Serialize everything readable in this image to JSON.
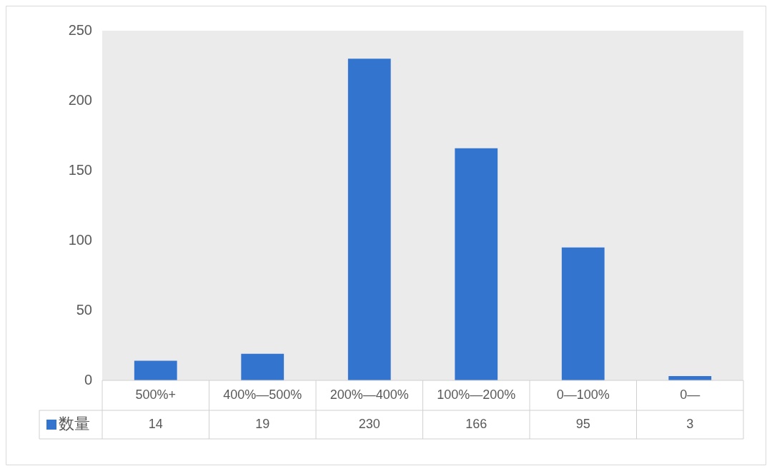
{
  "chart_data": {
    "type": "bar",
    "categories": [
      "500%+",
      "400%—500%",
      "200%—400%",
      "100%—200%",
      "0—100%",
      "0—"
    ],
    "series": [
      {
        "name": "数量",
        "color": "#3374cf",
        "values": [
          14,
          19,
          230,
          166,
          95,
          3
        ]
      }
    ],
    "ylim": [
      0,
      250
    ],
    "yticks": [
      0,
      50,
      100,
      150,
      200,
      250
    ],
    "grid": false,
    "legend": "bottom",
    "data_labels": true
  }
}
